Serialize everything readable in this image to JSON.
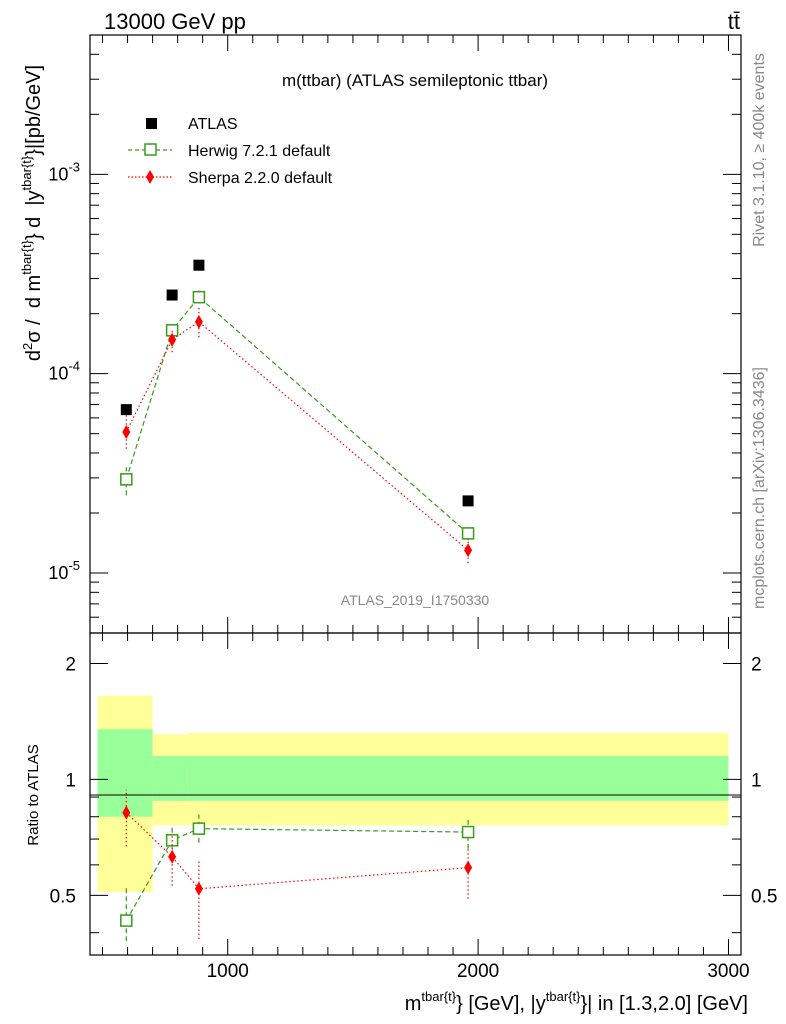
{
  "header": {
    "energy": "13000 GeV pp",
    "process": "tt̄",
    "rivet": "Rivet 3.1.10, ≥ 400k events",
    "site": "mcplots.cern.ch [arXiv:1306.3436]"
  },
  "colors": {
    "data": "#000000",
    "herwig": "#3a9a1a",
    "sherpa": "#ff0000",
    "band_inner": "#99ff99",
    "band_outer": "#ffff99"
  },
  "chart_data": [
    {
      "type": "scatter",
      "panel": "main",
      "title": "m(ttbar) (ATLAS semileptonic ttbar)",
      "analysis": "ATLAS_2019_I1750330",
      "ylabel": "d²σ / d m^{tbar{t}} d |y^{tbar{t}}|[pb/GeV]",
      "yscale": "log",
      "ylim": [
        5e-06,
        0.005
      ],
      "xlim": [
        450,
        3050
      ],
      "y_tick_labels": [
        "10^{-5}",
        "10^{-4}",
        "10^{-3}"
      ],
      "legend_position": "top-left",
      "series": [
        {
          "name": "ATLAS",
          "marker": "square-filled",
          "x": [
            595,
            778,
            885,
            1960
          ],
          "y": [
            6.6e-05,
            0.000248,
            0.00035,
            2.3e-05
          ]
        },
        {
          "name": "Herwig 7.2.1 default",
          "marker": "square-open",
          "line": "dashed",
          "x": [
            595,
            778,
            885,
            1960
          ],
          "y": [
            2.95e-05,
            0.000165,
            0.000242,
            1.58e-05
          ],
          "err_low": [
            2.45e-05,
            0.000152,
            0.000225,
            1.46e-05
          ],
          "err_high": [
            3.4e-05,
            0.000178,
            0.000262,
            1.7e-05
          ]
        },
        {
          "name": "Sherpa 2.2.0 default",
          "marker": "diamond-filled",
          "line": "dotted",
          "x": [
            595,
            778,
            885,
            1960
          ],
          "y": [
            5.1e-05,
            0.000148,
            0.000182,
            1.3e-05
          ],
          "err_low": [
            4.2e-05,
            0.000128,
            0.000152,
            1.12e-05
          ],
          "err_high": [
            6.3e-05,
            0.000166,
            0.000218,
            1.48e-05
          ]
        }
      ]
    },
    {
      "type": "scatter",
      "panel": "ratio",
      "ylabel": "Ratio to ATLAS",
      "xlabel": "m^{tbar{t}} [GeV], |y^{tbar{t}}| in [1.3,2.0] [GeV]",
      "ylim": [
        0.35,
        2.4
      ],
      "xlim": [
        450,
        3050
      ],
      "x_ticks": [
        1000,
        2000,
        3000
      ],
      "y_ticks": [
        0.5,
        1,
        2
      ],
      "uncertainty_bands": [
        {
          "x_low": 480,
          "x_high": 700,
          "inner": [
            0.8,
            1.35
          ],
          "outer": [
            0.51,
            1.65
          ]
        },
        {
          "x_low": 700,
          "x_high": 840,
          "inner": [
            0.88,
            1.15
          ],
          "outer": [
            0.76,
            1.31
          ]
        },
        {
          "x_low": 840,
          "x_high": 3000,
          "inner": [
            0.88,
            1.15
          ],
          "outer": [
            0.76,
            1.32
          ]
        }
      ],
      "series": [
        {
          "name": "Herwig 7.2.1 default",
          "x": [
            595,
            778,
            885,
            1960
          ],
          "y": [
            0.43,
            0.695,
            0.745,
            0.73
          ],
          "err_low": [
            0.38,
            0.63,
            0.685,
            0.66
          ],
          "err_high": [
            0.53,
            0.76,
            0.81,
            0.79
          ]
        },
        {
          "name": "Sherpa 2.2.0 default",
          "x": [
            595,
            778,
            885,
            1960
          ],
          "y": [
            0.82,
            0.63,
            0.52,
            0.59
          ],
          "err_low": [
            0.67,
            0.53,
            0.385,
            0.49
          ],
          "err_high": [
            0.94,
            0.72,
            0.62,
            0.67
          ]
        }
      ]
    }
  ]
}
